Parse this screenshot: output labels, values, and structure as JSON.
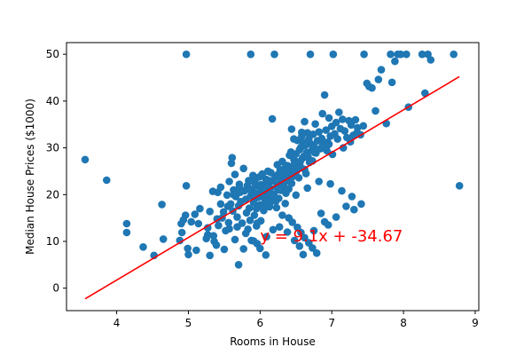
{
  "chart_data": {
    "type": "scatter",
    "title": "",
    "xlabel": "Rooms in House",
    "ylabel": "Median House Prices ($1000)",
    "xlim": [
      3.3,
      9.05
    ],
    "ylim": [
      -4.8,
      52.5
    ],
    "xticks": [
      4,
      5,
      6,
      7,
      8,
      9
    ],
    "yticks": [
      0,
      10,
      20,
      30,
      40,
      50
    ],
    "grid": false,
    "legend": "none",
    "point_color": "#1f77b4",
    "line_color": "#ff0000",
    "annotation": {
      "text": "y = 9.1x + -34.67",
      "x": 6.0,
      "y": 10.0,
      "color": "#ff0000"
    },
    "regression": {
      "slope": 9.1,
      "intercept": -34.67,
      "x_range": [
        3.56,
        8.78
      ]
    },
    "points": [
      [
        3.56,
        27.5
      ],
      [
        3.86,
        23.1
      ],
      [
        4.14,
        13.8
      ],
      [
        4.14,
        11.9
      ],
      [
        4.37,
        8.8
      ],
      [
        4.52,
        7.0
      ],
      [
        4.63,
        17.9
      ],
      [
        4.65,
        10.5
      ],
      [
        4.88,
        10.2
      ],
      [
        4.9,
        13.8
      ],
      [
        4.91,
        11.9
      ],
      [
        4.93,
        14.6
      ],
      [
        4.96,
        15.6
      ],
      [
        4.97,
        50.0
      ],
      [
        4.97,
        21.9
      ],
      [
        4.99,
        8.5
      ],
      [
        5.0,
        7.2
      ],
      [
        5.04,
        14.2
      ],
      [
        5.09,
        15.8
      ],
      [
        5.11,
        8.1
      ],
      [
        5.14,
        13.8
      ],
      [
        5.16,
        17.0
      ],
      [
        5.27,
        12.9
      ],
      [
        5.27,
        11.4
      ],
      [
        5.3,
        7.0
      ],
      [
        5.34,
        20.7
      ],
      [
        5.35,
        11.2
      ],
      [
        5.36,
        10.0
      ],
      [
        5.4,
        14.8
      ],
      [
        5.41,
        20.5
      ],
      [
        5.42,
        13.4
      ],
      [
        5.45,
        18.0
      ],
      [
        5.49,
        16.3
      ],
      [
        5.5,
        8.3
      ],
      [
        5.52,
        12.3
      ],
      [
        5.54,
        19.9
      ],
      [
        5.56,
        14.0
      ],
      [
        5.57,
        22.8
      ],
      [
        5.57,
        12.7
      ],
      [
        5.59,
        18.0
      ],
      [
        5.6,
        26.7
      ],
      [
        5.61,
        27.9
      ],
      [
        5.62,
        16.5
      ],
      [
        5.63,
        20.0
      ],
      [
        5.65,
        10.4
      ],
      [
        5.66,
        19.6
      ],
      [
        5.68,
        15.2
      ],
      [
        5.7,
        17.6
      ],
      [
        5.7,
        5.0
      ],
      [
        5.71,
        22.2
      ],
      [
        5.73,
        18.5
      ],
      [
        5.75,
        13.9
      ],
      [
        5.77,
        8.4
      ],
      [
        5.78,
        20.8
      ],
      [
        5.8,
        19.0
      ],
      [
        5.81,
        16.1
      ],
      [
        5.82,
        21.9
      ],
      [
        5.83,
        12.6
      ],
      [
        5.84,
        23.0
      ],
      [
        5.85,
        17.1
      ],
      [
        5.86,
        14.5
      ],
      [
        5.87,
        50.0
      ],
      [
        5.87,
        19.7
      ],
      [
        5.88,
        10.2
      ],
      [
        5.89,
        21.2
      ],
      [
        5.9,
        24.1
      ],
      [
        5.91,
        18.3
      ],
      [
        5.92,
        15.6
      ],
      [
        5.93,
        22.5
      ],
      [
        5.94,
        20.2
      ],
      [
        5.95,
        13.3
      ],
      [
        5.96,
        9.5
      ],
      [
        5.97,
        19.4
      ],
      [
        5.98,
        21.7
      ],
      [
        5.99,
        23.8
      ],
      [
        6.0,
        17.8
      ],
      [
        6.01,
        14.4
      ],
      [
        6.02,
        20.6
      ],
      [
        6.03,
        24.4
      ],
      [
        6.04,
        22.0
      ],
      [
        6.05,
        16.6
      ],
      [
        6.06,
        19.3
      ],
      [
        6.07,
        21.1
      ],
      [
        6.08,
        23.3
      ],
      [
        6.09,
        18.9
      ],
      [
        6.1,
        20.4
      ],
      [
        6.11,
        25.0
      ],
      [
        6.12,
        22.6
      ],
      [
        6.13,
        17.4
      ],
      [
        6.14,
        21.4
      ],
      [
        6.15,
        24.7
      ],
      [
        6.16,
        19.8
      ],
      [
        6.17,
        36.2
      ],
      [
        6.18,
        22.9
      ],
      [
        6.19,
        20.1
      ],
      [
        6.2,
        50.0
      ],
      [
        6.21,
        23.7
      ],
      [
        6.22,
        18.6
      ],
      [
        6.23,
        21.6
      ],
      [
        6.24,
        26.4
      ],
      [
        6.25,
        24.3
      ],
      [
        6.26,
        19.2
      ],
      [
        6.27,
        22.3
      ],
      [
        6.28,
        25.3
      ],
      [
        6.29,
        20.9
      ],
      [
        6.3,
        23.1
      ],
      [
        6.31,
        27.1
      ],
      [
        6.32,
        24.0
      ],
      [
        6.33,
        21.7
      ],
      [
        6.34,
        25.6
      ],
      [
        6.35,
        22.7
      ],
      [
        6.36,
        20.3
      ],
      [
        6.37,
        24.6
      ],
      [
        6.38,
        26.2
      ],
      [
        6.39,
        23.4
      ],
      [
        6.4,
        21.2
      ],
      [
        6.41,
        28.4
      ],
      [
        6.42,
        24.8
      ],
      [
        6.43,
        29.1
      ],
      [
        6.44,
        22.4
      ],
      [
        6.45,
        25.9
      ],
      [
        6.46,
        23.9
      ],
      [
        6.47,
        27.5
      ],
      [
        6.48,
        26.6
      ],
      [
        6.49,
        24.2
      ],
      [
        6.5,
        28.7
      ],
      [
        6.51,
        25.1
      ],
      [
        6.52,
        31.6
      ],
      [
        6.53,
        27.0
      ],
      [
        6.54,
        23.6
      ],
      [
        6.55,
        29.6
      ],
      [
        6.56,
        26.0
      ],
      [
        6.57,
        30.1
      ],
      [
        6.58,
        32.4
      ],
      [
        6.59,
        27.8
      ],
      [
        6.6,
        31.1
      ],
      [
        6.61,
        28.2
      ],
      [
        6.62,
        25.4
      ],
      [
        6.63,
        30.5
      ],
      [
        6.64,
        24.5
      ],
      [
        6.65,
        29.0
      ],
      [
        6.66,
        33.2
      ],
      [
        6.67,
        28.0
      ],
      [
        6.68,
        31.8
      ],
      [
        6.69,
        26.9
      ],
      [
        6.7,
        50.0
      ],
      [
        6.71,
        30.8
      ],
      [
        6.72,
        29.4
      ],
      [
        6.73,
        27.2
      ],
      [
        6.74,
        32.9
      ],
      [
        6.75,
        30.3
      ],
      [
        6.77,
        35.1
      ],
      [
        6.78,
        28.9
      ],
      [
        6.8,
        31.5
      ],
      [
        6.82,
        33.4
      ],
      [
        6.84,
        29.8
      ],
      [
        6.86,
        32.0
      ],
      [
        6.88,
        30.7
      ],
      [
        6.9,
        41.3
      ],
      [
        6.92,
        33.8
      ],
      [
        6.94,
        31.2
      ],
      [
        6.96,
        36.4
      ],
      [
        6.98,
        32.5
      ],
      [
        7.0,
        34.6
      ],
      [
        7.02,
        50.0
      ],
      [
        7.04,
        33.0
      ],
      [
        7.06,
        35.4
      ],
      [
        7.08,
        31.9
      ],
      [
        7.1,
        37.6
      ],
      [
        7.12,
        34.1
      ],
      [
        7.15,
        36.1
      ],
      [
        7.18,
        33.6
      ],
      [
        7.21,
        32.2
      ],
      [
        7.24,
        35.8
      ],
      [
        7.27,
        34.9
      ],
      [
        7.3,
        32.7
      ],
      [
        7.33,
        36.0
      ],
      [
        7.36,
        34.3
      ],
      [
        7.4,
        32.8
      ],
      [
        7.45,
        50.0
      ],
      [
        7.49,
        43.8
      ],
      [
        7.52,
        43.1
      ],
      [
        7.56,
        42.8
      ],
      [
        7.61,
        37.9
      ],
      [
        7.65,
        44.6
      ],
      [
        7.69,
        46.7
      ],
      [
        7.76,
        35.2
      ],
      [
        7.82,
        50.0
      ],
      [
        7.84,
        44.0
      ],
      [
        7.88,
        48.5
      ],
      [
        7.92,
        50.0
      ],
      [
        7.96,
        50.0
      ],
      [
        8.04,
        50.0
      ],
      [
        8.07,
        38.7
      ],
      [
        8.26,
        50.0
      ],
      [
        8.3,
        41.7
      ],
      [
        8.34,
        50.0
      ],
      [
        8.38,
        48.8
      ],
      [
        8.7,
        50.0
      ],
      [
        8.78,
        21.9
      ],
      [
        5.63,
        21.0
      ],
      [
        5.71,
        21.5
      ],
      [
        5.88,
        22.9
      ],
      [
        5.93,
        23.3
      ],
      [
        6.03,
        19.6
      ],
      [
        6.14,
        18.3
      ],
      [
        6.23,
        17.2
      ],
      [
        6.31,
        15.6
      ],
      [
        6.4,
        15.0
      ],
      [
        6.45,
        14.1
      ],
      [
        6.52,
        13.0
      ],
      [
        6.57,
        11.9
      ],
      [
        6.62,
        10.8
      ],
      [
        6.68,
        9.7
      ],
      [
        6.73,
        8.6
      ],
      [
        6.79,
        7.5
      ],
      [
        6.18,
        12.5
      ],
      [
        6.09,
        11.0
      ],
      [
        5.96,
        13.9
      ],
      [
        6.27,
        13.1
      ],
      [
        6.38,
        12.0
      ],
      [
        6.48,
        10.2
      ],
      [
        6.55,
        9.0
      ],
      [
        6.6,
        7.2
      ],
      [
        6.85,
        16.0
      ],
      [
        6.9,
        14.2
      ],
      [
        6.75,
        12.3
      ],
      [
        6.95,
        13.5
      ],
      [
        7.06,
        15.2
      ],
      [
        7.2,
        17.5
      ],
      [
        7.31,
        16.8
      ],
      [
        7.41,
        18.0
      ],
      [
        7.28,
        19.6
      ],
      [
        7.14,
        20.8
      ],
      [
        6.98,
        22.3
      ],
      [
        6.82,
        22.8
      ],
      [
        6.66,
        21.4
      ],
      [
        6.5,
        19.9
      ],
      [
        6.35,
        18.1
      ],
      [
        6.2,
        19.5
      ],
      [
        5.55,
        17.5
      ],
      [
        5.47,
        15.0
      ],
      [
        5.68,
        13.1
      ],
      [
        5.8,
        11.7
      ],
      [
        5.91,
        10.1
      ],
      [
        6.0,
        8.5
      ],
      [
        6.08,
        7.1
      ],
      [
        5.39,
        9.2
      ],
      [
        5.25,
        10.6
      ],
      [
        5.3,
        16.4
      ],
      [
        5.45,
        21.6
      ],
      [
        5.65,
        24.3
      ],
      [
        5.77,
        25.6
      ],
      [
        6.44,
        34.0
      ],
      [
        6.62,
        35.6
      ],
      [
        6.87,
        37.3
      ],
      [
        6.93,
        29.4
      ],
      [
        7.01,
        28.6
      ],
      [
        7.16,
        30.0
      ],
      [
        7.26,
        31.3
      ],
      [
        7.35,
        33.2
      ],
      [
        7.44,
        34.7
      ],
      [
        6.47,
        31.9
      ],
      [
        6.58,
        33.3
      ],
      [
        5.72,
        20.5
      ],
      [
        5.86,
        21.0
      ],
      [
        6.01,
        22.1
      ],
      [
        6.13,
        23.0
      ],
      [
        6.26,
        23.8
      ],
      [
        6.36,
        25.0
      ],
      [
        6.46,
        26.1
      ],
      [
        6.56,
        27.0
      ],
      [
        6.66,
        28.0
      ],
      [
        6.76,
        29.0
      ],
      [
        6.86,
        30.1
      ],
      [
        6.96,
        30.8
      ],
      [
        5.95,
        17.0
      ],
      [
        6.05,
        18.0
      ],
      [
        6.15,
        20.0
      ],
      [
        6.25,
        21.0
      ]
    ]
  }
}
